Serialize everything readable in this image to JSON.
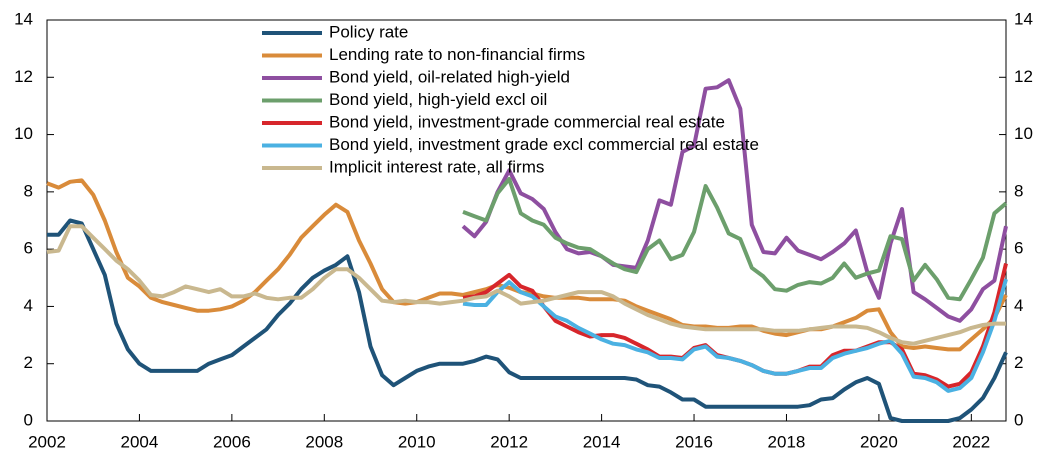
{
  "chart_data": {
    "type": "line",
    "x": [
      2002,
      2002.25,
      2002.5,
      2002.75,
      2003,
      2003.25,
      2003.5,
      2003.75,
      2004,
      2004.25,
      2004.5,
      2004.75,
      2005,
      2005.25,
      2005.5,
      2005.75,
      2006,
      2006.25,
      2006.5,
      2006.75,
      2007,
      2007.25,
      2007.5,
      2007.75,
      2008,
      2008.25,
      2008.5,
      2008.75,
      2009,
      2009.25,
      2009.5,
      2009.75,
      2010,
      2010.25,
      2010.5,
      2010.75,
      2011,
      2011.25,
      2011.5,
      2011.75,
      2012,
      2012.25,
      2012.5,
      2012.75,
      2013,
      2013.25,
      2013.5,
      2013.75,
      2014,
      2014.25,
      2014.5,
      2014.75,
      2015,
      2015.25,
      2015.5,
      2015.75,
      2016,
      2016.25,
      2016.5,
      2016.75,
      2017,
      2017.25,
      2017.5,
      2017.75,
      2018,
      2018.25,
      2018.5,
      2018.75,
      2019,
      2019.25,
      2019.5,
      2019.75,
      2020,
      2020.25,
      2020.5,
      2020.75,
      2021,
      2021.25,
      2021.5,
      2021.75,
      2022,
      2022.25,
      2022.5,
      2022.75
    ],
    "series": [
      {
        "name": "Policy rate",
        "color": "#1f5378",
        "values": [
          6.5,
          6.5,
          7.0,
          6.9,
          6.0,
          5.1,
          3.4,
          2.5,
          2.0,
          1.75,
          1.75,
          1.75,
          1.75,
          1.75,
          2.0,
          2.15,
          2.3,
          2.6,
          2.9,
          3.2,
          3.7,
          4.1,
          4.6,
          5.0,
          5.25,
          5.45,
          5.75,
          4.5,
          2.6,
          1.6,
          1.25,
          1.5,
          1.75,
          1.9,
          2.0,
          2.0,
          2.0,
          2.1,
          2.25,
          2.15,
          1.7,
          1.5,
          1.5,
          1.5,
          1.5,
          1.5,
          1.5,
          1.5,
          1.5,
          1.5,
          1.5,
          1.45,
          1.25,
          1.2,
          1.0,
          0.75,
          0.75,
          0.5,
          0.5,
          0.5,
          0.5,
          0.5,
          0.5,
          0.5,
          0.5,
          0.5,
          0.55,
          0.75,
          0.8,
          1.1,
          1.35,
          1.5,
          1.3,
          0.1,
          0,
          0,
          0,
          0,
          0,
          0.1,
          0.4,
          0.8,
          1.5,
          2.4
        ]
      },
      {
        "name": "Lending rate to non-financial firms",
        "color": "#d98b3a",
        "values": [
          8.3,
          8.15,
          8.35,
          8.4,
          7.9,
          7.0,
          5.9,
          5.0,
          4.7,
          4.3,
          4.15,
          4.05,
          3.95,
          3.85,
          3.85,
          3.9,
          4.0,
          4.2,
          4.5,
          4.9,
          5.3,
          5.8,
          6.4,
          6.8,
          7.2,
          7.55,
          7.3,
          6.3,
          5.5,
          4.6,
          4.15,
          4.1,
          4.15,
          4.3,
          4.45,
          4.45,
          4.4,
          4.5,
          4.6,
          4.75,
          4.65,
          4.5,
          4.45,
          4.35,
          4.3,
          4.3,
          4.3,
          4.25,
          4.25,
          4.25,
          4.2,
          4.0,
          3.85,
          3.7,
          3.55,
          3.35,
          3.3,
          3.3,
          3.25,
          3.25,
          3.3,
          3.3,
          3.15,
          3.05,
          3.0,
          3.1,
          3.2,
          3.2,
          3.3,
          3.45,
          3.6,
          3.85,
          3.9,
          3.1,
          2.6,
          2.55,
          2.6,
          2.55,
          2.5,
          2.5,
          2.85,
          3.2,
          3.6,
          4.4
        ]
      },
      {
        "name": "Bond yield, oil-related high-yield",
        "color": "#8e4fa0",
        "values": [
          null,
          null,
          null,
          null,
          null,
          null,
          null,
          null,
          null,
          null,
          null,
          null,
          null,
          null,
          null,
          null,
          null,
          null,
          null,
          null,
          null,
          null,
          null,
          null,
          null,
          null,
          null,
          null,
          null,
          null,
          null,
          null,
          null,
          null,
          null,
          null,
          6.8,
          6.45,
          6.95,
          8.0,
          8.75,
          7.95,
          7.75,
          7.4,
          6.6,
          6.0,
          5.85,
          5.9,
          5.75,
          5.45,
          5.4,
          5.35,
          6.3,
          7.7,
          7.55,
          9.4,
          9.6,
          11.6,
          11.65,
          11.9,
          10.9,
          6.85,
          5.9,
          5.85,
          6.4,
          5.95,
          5.8,
          5.65,
          5.9,
          6.2,
          6.65,
          5.2,
          4.3,
          6.2,
          7.4,
          4.5,
          4.25,
          3.95,
          3.65,
          3.5,
          3.9,
          4.6,
          4.9,
          6.8
        ]
      },
      {
        "name": "Bond yield, high-yield excl oil",
        "color": "#6c9f6c",
        "values": [
          null,
          null,
          null,
          null,
          null,
          null,
          null,
          null,
          null,
          null,
          null,
          null,
          null,
          null,
          null,
          null,
          null,
          null,
          null,
          null,
          null,
          null,
          null,
          null,
          null,
          null,
          null,
          null,
          null,
          null,
          null,
          null,
          null,
          null,
          null,
          null,
          7.3,
          7.15,
          7.0,
          7.95,
          8.45,
          7.25,
          7.0,
          6.85,
          6.4,
          6.2,
          6.05,
          6.0,
          5.75,
          5.5,
          5.3,
          5.2,
          6.0,
          6.3,
          5.65,
          5.8,
          6.6,
          8.2,
          7.45,
          6.55,
          6.35,
          5.35,
          5.05,
          4.6,
          4.55,
          4.75,
          4.85,
          4.8,
          5.0,
          5.5,
          5.0,
          5.15,
          5.25,
          6.45,
          6.35,
          4.9,
          5.45,
          4.95,
          4.3,
          4.25,
          4.95,
          5.7,
          7.25,
          7.6
        ]
      },
      {
        "name": "Bond yield, investment-grade commercial real estate",
        "color": "#d7262b",
        "values": [
          null,
          null,
          null,
          null,
          null,
          null,
          null,
          null,
          null,
          null,
          null,
          null,
          null,
          null,
          null,
          null,
          null,
          null,
          null,
          null,
          null,
          null,
          null,
          null,
          null,
          null,
          null,
          null,
          null,
          null,
          null,
          null,
          null,
          null,
          null,
          null,
          4.3,
          4.35,
          4.5,
          4.8,
          5.1,
          4.7,
          4.55,
          4.0,
          3.5,
          3.3,
          3.1,
          2.95,
          3.0,
          3.0,
          2.9,
          2.7,
          2.5,
          2.25,
          2.25,
          2.2,
          2.55,
          2.65,
          2.3,
          2.2,
          2.1,
          1.95,
          1.75,
          1.65,
          1.65,
          1.75,
          1.9,
          1.9,
          2.3,
          2.45,
          2.45,
          2.6,
          2.75,
          2.75,
          2.5,
          1.65,
          1.6,
          1.45,
          1.2,
          1.3,
          1.7,
          2.6,
          3.8,
          5.5
        ]
      },
      {
        "name": "Bond yield, investment grade excl commercial real estate",
        "color": "#4bb1e2",
        "values": [
          null,
          null,
          null,
          null,
          null,
          null,
          null,
          null,
          null,
          null,
          null,
          null,
          null,
          null,
          null,
          null,
          null,
          null,
          null,
          null,
          null,
          null,
          null,
          null,
          null,
          null,
          null,
          null,
          null,
          null,
          null,
          null,
          null,
          null,
          null,
          null,
          4.1,
          4.05,
          4.05,
          4.5,
          4.85,
          4.5,
          4.35,
          4.0,
          3.65,
          3.5,
          3.25,
          3.05,
          2.85,
          2.7,
          2.65,
          2.5,
          2.4,
          2.2,
          2.2,
          2.15,
          2.5,
          2.6,
          2.25,
          2.2,
          2.1,
          1.95,
          1.75,
          1.65,
          1.65,
          1.75,
          1.85,
          1.85,
          2.2,
          2.35,
          2.45,
          2.55,
          2.7,
          2.8,
          2.35,
          1.55,
          1.5,
          1.35,
          1.05,
          1.15,
          1.5,
          2.4,
          3.5,
          4.95
        ]
      },
      {
        "name": "Implicit interest rate, all firms",
        "color": "#c9b88f",
        "values": [
          5.9,
          5.95,
          6.8,
          6.8,
          6.4,
          6.0,
          5.6,
          5.3,
          4.9,
          4.4,
          4.35,
          4.5,
          4.7,
          4.6,
          4.5,
          4.6,
          4.35,
          4.35,
          4.45,
          4.3,
          4.25,
          4.3,
          4.3,
          4.6,
          5.0,
          5.3,
          5.3,
          5.0,
          4.6,
          4.2,
          4.15,
          4.2,
          4.15,
          4.15,
          4.1,
          4.15,
          4.2,
          4.3,
          4.35,
          4.55,
          4.35,
          4.1,
          4.15,
          4.2,
          4.3,
          4.4,
          4.5,
          4.5,
          4.5,
          4.35,
          4.1,
          3.9,
          3.7,
          3.55,
          3.4,
          3.3,
          3.25,
          3.2,
          3.2,
          3.2,
          3.2,
          3.2,
          3.2,
          3.15,
          3.15,
          3.15,
          3.2,
          3.25,
          3.3,
          3.3,
          3.3,
          3.25,
          3.1,
          2.9,
          2.75,
          2.7,
          2.8,
          2.9,
          3.0,
          3.1,
          3.25,
          3.35,
          3.4,
          3.4
        ]
      }
    ],
    "xlim": [
      2002,
      2022.75
    ],
    "xticks": [
      2002,
      2004,
      2006,
      2008,
      2010,
      2012,
      2014,
      2016,
      2018,
      2020,
      2022
    ],
    "ylim": [
      0,
      14
    ],
    "yticks": [
      0,
      2,
      4,
      6,
      8,
      10,
      12,
      14
    ],
    "y2lim": [
      0,
      14
    ],
    "y2ticks": [
      0,
      2,
      4,
      6,
      8,
      10,
      12,
      14
    ]
  }
}
